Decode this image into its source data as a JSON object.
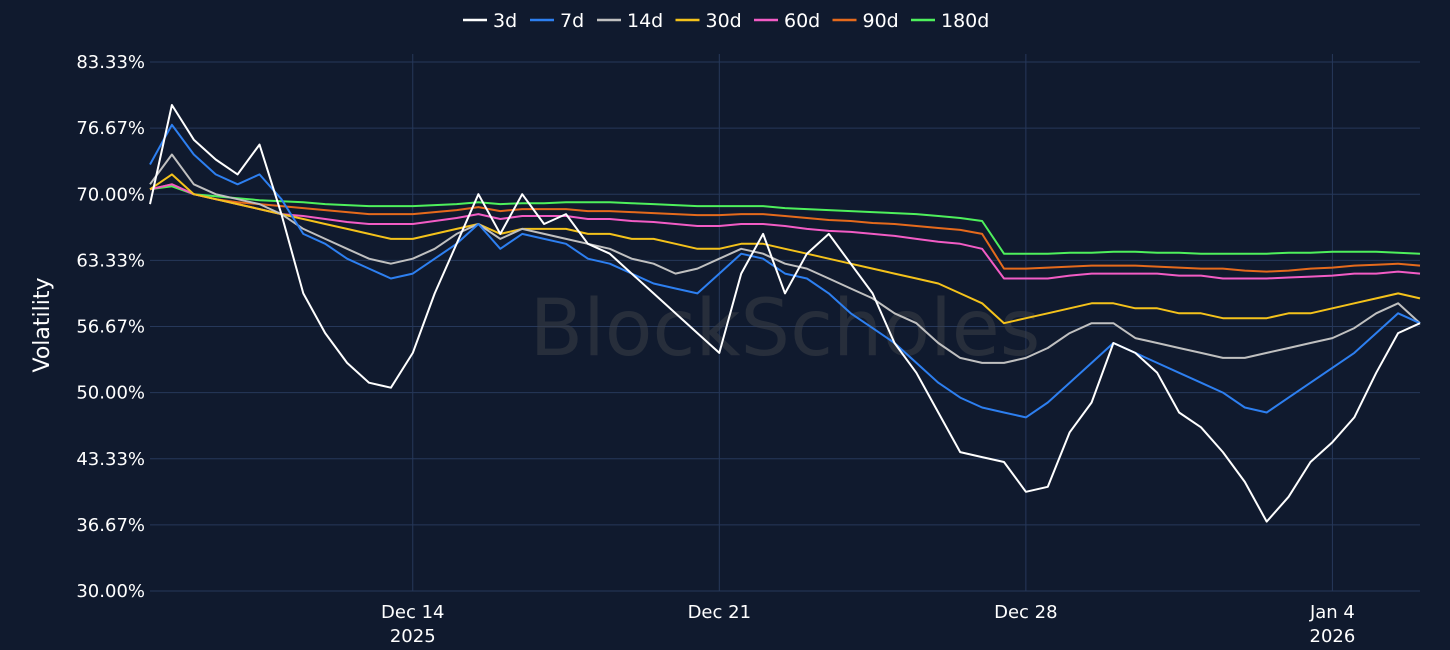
{
  "chart_data": {
    "type": "line",
    "watermark": "BlockScholes",
    "ylabel": "Volatility",
    "ylim": [
      30,
      83.33
    ],
    "y_ticks": [
      "30.00%",
      "36.67%",
      "43.33%",
      "50.00%",
      "56.67%",
      "63.33%",
      "70.00%",
      "76.67%",
      "83.33%"
    ],
    "x_range": [
      "2025-12-08",
      "2026-01-06T00:00"
    ],
    "x_ticks": [
      {
        "date": "2025-12-14",
        "label": "Dec 14",
        "sublabel": "2025"
      },
      {
        "date": "2025-12-21",
        "label": "Dec 21",
        "sublabel": ""
      },
      {
        "date": "2025-12-28",
        "label": "Dec 28",
        "sublabel": ""
      },
      {
        "date": "2026-01-04",
        "label": "Jan 4",
        "sublabel": "2026"
      }
    ],
    "grid": true,
    "legend_position": "top-center",
    "series": [
      {
        "name": "3d",
        "color": "#ffffff",
        "x": [
          "2025-12-08",
          "2025-12-08T12:00",
          "2025-12-09",
          "2025-12-09T12:00",
          "2025-12-10",
          "2025-12-10T12:00",
          "2025-12-11",
          "2025-12-11T12:00",
          "2025-12-12",
          "2025-12-12T12:00",
          "2025-12-13",
          "2025-12-13T12:00",
          "2025-12-14",
          "2025-12-14T12:00",
          "2025-12-15",
          "2025-12-15T12:00",
          "2025-12-16",
          "2025-12-16T12:00",
          "2025-12-17",
          "2025-12-17T12:00",
          "2025-12-18",
          "2025-12-18T12:00",
          "2025-12-19",
          "2025-12-19T12:00",
          "2025-12-20",
          "2025-12-20T12:00",
          "2025-12-21",
          "2025-12-21T12:00",
          "2025-12-22",
          "2025-12-22T12:00",
          "2025-12-23",
          "2025-12-23T12:00",
          "2025-12-24",
          "2025-12-24T12:00",
          "2025-12-25",
          "2025-12-25T12:00",
          "2025-12-26",
          "2025-12-26T12:00",
          "2025-12-27",
          "2025-12-27T12:00",
          "2025-12-28",
          "2025-12-28T12:00",
          "2025-12-29",
          "2025-12-29T12:00",
          "2025-12-30",
          "2025-12-30T12:00",
          "2025-12-31",
          "2025-12-31T12:00",
          "2026-01-01",
          "2026-01-01T12:00",
          "2026-01-02",
          "2026-01-02T12:00",
          "2026-01-03",
          "2026-01-03T12:00",
          "2026-01-04",
          "2026-01-04T12:00",
          "2026-01-05",
          "2026-01-05T12:00",
          "2026-01-06"
        ],
        "values": [
          69,
          79,
          75.5,
          73.5,
          72,
          75,
          68,
          60,
          56,
          53,
          51,
          50.5,
          54,
          60,
          65,
          70,
          66,
          70,
          67,
          68,
          65,
          64,
          62,
          60,
          58,
          56,
          54,
          62,
          66,
          60,
          64,
          66,
          63,
          60,
          55,
          52,
          48,
          44,
          43.5,
          43,
          40,
          40.5,
          46,
          49,
          55,
          54,
          52,
          48,
          46.5,
          44,
          41,
          37,
          39.5,
          43,
          45,
          47.5,
          52,
          56,
          57
        ]
      },
      {
        "name": "7d",
        "color": "#2d7ff0",
        "x": [
          "2025-12-08",
          "2025-12-08T12:00",
          "2025-12-09",
          "2025-12-09T12:00",
          "2025-12-10",
          "2025-12-10T12:00",
          "2025-12-11",
          "2025-12-11T12:00",
          "2025-12-12",
          "2025-12-12T12:00",
          "2025-12-13",
          "2025-12-13T12:00",
          "2025-12-14",
          "2025-12-14T12:00",
          "2025-12-15",
          "2025-12-15T12:00",
          "2025-12-16",
          "2025-12-16T12:00",
          "2025-12-17",
          "2025-12-17T12:00",
          "2025-12-18",
          "2025-12-18T12:00",
          "2025-12-19",
          "2025-12-19T12:00",
          "2025-12-20",
          "2025-12-20T12:00",
          "2025-12-21",
          "2025-12-21T12:00",
          "2025-12-22",
          "2025-12-22T12:00",
          "2025-12-23",
          "2025-12-23T12:00",
          "2025-12-24",
          "2025-12-24T12:00",
          "2025-12-25",
          "2025-12-25T12:00",
          "2025-12-26",
          "2025-12-26T12:00",
          "2025-12-27",
          "2025-12-27T12:00",
          "2025-12-28",
          "2025-12-28T12:00",
          "2025-12-29",
          "2025-12-29T12:00",
          "2025-12-30",
          "2025-12-30T12:00",
          "2025-12-31",
          "2025-12-31T12:00",
          "2026-01-01",
          "2026-01-01T12:00",
          "2026-01-02",
          "2026-01-02T12:00",
          "2026-01-03",
          "2026-01-03T12:00",
          "2026-01-04",
          "2026-01-04T12:00",
          "2026-01-05",
          "2026-01-05T12:00",
          "2026-01-06"
        ],
        "values": [
          73,
          77,
          74,
          72,
          71,
          72,
          69.5,
          66,
          65,
          63.5,
          62.5,
          61.5,
          62,
          63.5,
          65,
          67,
          64.5,
          66,
          65.5,
          65,
          63.5,
          63,
          62,
          61,
          60.5,
          60,
          62,
          64,
          63.5,
          62,
          61.5,
          60,
          58,
          56.5,
          55,
          53,
          51,
          49.5,
          48.5,
          48,
          47.5,
          49,
          51,
          53,
          55,
          54,
          53,
          52,
          51,
          50,
          48.5,
          48,
          49.5,
          51,
          52.5,
          54,
          56,
          58,
          57
        ]
      },
      {
        "name": "14d",
        "color": "#c0c0c0",
        "x": [
          "2025-12-08",
          "2025-12-08T12:00",
          "2025-12-09",
          "2025-12-09T12:00",
          "2025-12-10",
          "2025-12-10T12:00",
          "2025-12-11",
          "2025-12-11T12:00",
          "2025-12-12",
          "2025-12-12T12:00",
          "2025-12-13",
          "2025-12-13T12:00",
          "2025-12-14",
          "2025-12-14T12:00",
          "2025-12-15",
          "2025-12-15T12:00",
          "2025-12-16",
          "2025-12-16T12:00",
          "2025-12-17",
          "2025-12-17T12:00",
          "2025-12-18",
          "2025-12-18T12:00",
          "2025-12-19",
          "2025-12-19T12:00",
          "2025-12-20",
          "2025-12-20T12:00",
          "2025-12-21",
          "2025-12-21T12:00",
          "2025-12-22",
          "2025-12-22T12:00",
          "2025-12-23",
          "2025-12-23T12:00",
          "2025-12-24",
          "2025-12-24T12:00",
          "2025-12-25",
          "2025-12-25T12:00",
          "2025-12-26",
          "2025-12-26T12:00",
          "2025-12-27",
          "2025-12-27T12:00",
          "2025-12-28",
          "2025-12-28T12:00",
          "2025-12-29",
          "2025-12-29T12:00",
          "2025-12-30",
          "2025-12-30T12:00",
          "2025-12-31",
          "2025-12-31T12:00",
          "2026-01-01",
          "2026-01-01T12:00",
          "2026-01-02",
          "2026-01-02T12:00",
          "2026-01-03",
          "2026-01-03T12:00",
          "2026-01-04",
          "2026-01-04T12:00",
          "2026-01-05",
          "2026-01-05T12:00",
          "2026-01-06"
        ],
        "values": [
          71,
          74,
          71,
          70,
          69.5,
          69,
          68,
          66.5,
          65.5,
          64.5,
          63.5,
          63,
          63.5,
          64.5,
          66,
          67,
          65.5,
          66.5,
          66,
          65.5,
          65,
          64.5,
          63.5,
          63,
          62,
          62.5,
          63.5,
          64.5,
          64,
          63,
          62.5,
          61.5,
          60.5,
          59.5,
          58,
          57,
          55,
          53.5,
          53,
          53,
          53.5,
          54.5,
          56,
          57,
          57,
          55.5,
          55,
          54.5,
          54,
          53.5,
          53.5,
          54,
          54.5,
          55,
          55.5,
          56.5,
          58,
          59,
          57
        ]
      },
      {
        "name": "30d",
        "color": "#f4c21b",
        "x": [
          "2025-12-08",
          "2025-12-08T12:00",
          "2025-12-09",
          "2025-12-09T12:00",
          "2025-12-10",
          "2025-12-10T12:00",
          "2025-12-11",
          "2025-12-11T12:00",
          "2025-12-12",
          "2025-12-12T12:00",
          "2025-12-13",
          "2025-12-13T12:00",
          "2025-12-14",
          "2025-12-14T12:00",
          "2025-12-15",
          "2025-12-15T12:00",
          "2025-12-16",
          "2025-12-16T12:00",
          "2025-12-17",
          "2025-12-17T12:00",
          "2025-12-18",
          "2025-12-18T12:00",
          "2025-12-19",
          "2025-12-19T12:00",
          "2025-12-20",
          "2025-12-20T12:00",
          "2025-12-21",
          "2025-12-21T12:00",
          "2025-12-22",
          "2025-12-22T12:00",
          "2025-12-23",
          "2025-12-23T12:00",
          "2025-12-24",
          "2025-12-24T12:00",
          "2025-12-25",
          "2025-12-25T12:00",
          "2025-12-26",
          "2025-12-26T12:00",
          "2025-12-27",
          "2025-12-27T12:00",
          "2025-12-28",
          "2025-12-28T12:00",
          "2025-12-29",
          "2025-12-29T12:00",
          "2025-12-30",
          "2025-12-30T12:00",
          "2025-12-31",
          "2025-12-31T12:00",
          "2026-01-01",
          "2026-01-01T12:00",
          "2026-01-02",
          "2026-01-02T12:00",
          "2026-01-03",
          "2026-01-03T12:00",
          "2026-01-04",
          "2026-01-04T12:00",
          "2026-01-05",
          "2026-01-05T12:00",
          "2026-01-06"
        ],
        "values": [
          70.5,
          72,
          70,
          69.5,
          69,
          68.5,
          68,
          67.5,
          67,
          66.5,
          66,
          65.5,
          65.5,
          66,
          66.5,
          67,
          66,
          66.5,
          66.5,
          66.5,
          66,
          66,
          65.5,
          65.5,
          65,
          64.5,
          64.5,
          65,
          65,
          64.5,
          64,
          63.5,
          63,
          62.5,
          62,
          61.5,
          61,
          60,
          59,
          57,
          57.5,
          58,
          58.5,
          59,
          59,
          58.5,
          58.5,
          58,
          58,
          57.5,
          57.5,
          57.5,
          58,
          58,
          58.5,
          59,
          59.5,
          60,
          59.5
        ]
      },
      {
        "name": "60d",
        "color": "#f25cc5",
        "x": [
          "2025-12-08",
          "2025-12-08T12:00",
          "2025-12-09",
          "2025-12-09T12:00",
          "2025-12-10",
          "2025-12-10T12:00",
          "2025-12-11",
          "2025-12-11T12:00",
          "2025-12-12",
          "2025-12-12T12:00",
          "2025-12-13",
          "2025-12-13T12:00",
          "2025-12-14",
          "2025-12-14T12:00",
          "2025-12-15",
          "2025-12-15T12:00",
          "2025-12-16",
          "2025-12-16T12:00",
          "2025-12-17",
          "2025-12-17T12:00",
          "2025-12-18",
          "2025-12-18T12:00",
          "2025-12-19",
          "2025-12-19T12:00",
          "2025-12-20",
          "2025-12-20T12:00",
          "2025-12-21",
          "2025-12-21T12:00",
          "2025-12-22",
          "2025-12-22T12:00",
          "2025-12-23",
          "2025-12-23T12:00",
          "2025-12-24",
          "2025-12-24T12:00",
          "2025-12-25",
          "2025-12-25T12:00",
          "2025-12-26",
          "2025-12-26T12:00",
          "2025-12-27",
          "2025-12-27T12:00",
          "2025-12-28",
          "2025-12-28T12:00",
          "2025-12-29",
          "2025-12-29T12:00",
          "2025-12-30",
          "2025-12-30T12:00",
          "2025-12-31",
          "2025-12-31T12:00",
          "2026-01-01",
          "2026-01-01T12:00",
          "2026-01-02",
          "2026-01-02T12:00",
          "2026-01-03",
          "2026-01-03T12:00",
          "2026-01-04",
          "2026-01-04T12:00",
          "2026-01-05",
          "2026-01-05T12:00",
          "2026-01-06"
        ],
        "values": [
          70.5,
          71,
          70,
          69.5,
          69,
          68.5,
          68,
          67.8,
          67.5,
          67.2,
          67,
          67,
          67,
          67.3,
          67.6,
          68,
          67.5,
          67.8,
          67.8,
          67.8,
          67.5,
          67.5,
          67.3,
          67.2,
          67,
          66.8,
          66.8,
          67,
          67,
          66.8,
          66.5,
          66.3,
          66.2,
          66,
          65.8,
          65.5,
          65.2,
          65,
          64.5,
          61.5,
          61.5,
          61.5,
          61.8,
          62,
          62,
          62,
          62,
          61.8,
          61.8,
          61.5,
          61.5,
          61.5,
          61.6,
          61.7,
          61.8,
          62,
          62,
          62.2,
          62
        ]
      },
      {
        "name": "90d",
        "color": "#e56a1c",
        "x": [
          "2025-12-08",
          "2025-12-08T12:00",
          "2025-12-09",
          "2025-12-09T12:00",
          "2025-12-10",
          "2025-12-10T12:00",
          "2025-12-11",
          "2025-12-11T12:00",
          "2025-12-12",
          "2025-12-12T12:00",
          "2025-12-13",
          "2025-12-13T12:00",
          "2025-12-14",
          "2025-12-14T12:00",
          "2025-12-15",
          "2025-12-15T12:00",
          "2025-12-16",
          "2025-12-16T12:00",
          "2025-12-17",
          "2025-12-17T12:00",
          "2025-12-18",
          "2025-12-18T12:00",
          "2025-12-19",
          "2025-12-19T12:00",
          "2025-12-20",
          "2025-12-20T12:00",
          "2025-12-21",
          "2025-12-21T12:00",
          "2025-12-22",
          "2025-12-22T12:00",
          "2025-12-23",
          "2025-12-23T12:00",
          "2025-12-24",
          "2025-12-24T12:00",
          "2025-12-25",
          "2025-12-25T12:00",
          "2025-12-26",
          "2025-12-26T12:00",
          "2025-12-27",
          "2025-12-27T12:00",
          "2025-12-28",
          "2025-12-28T12:00",
          "2025-12-29",
          "2025-12-29T12:00",
          "2025-12-30",
          "2025-12-30T12:00",
          "2025-12-31",
          "2025-12-31T12:00",
          "2026-01-01",
          "2026-01-01T12:00",
          "2026-01-02",
          "2026-01-02T12:00",
          "2026-01-03",
          "2026-01-03T12:00",
          "2026-01-04",
          "2026-01-04T12:00",
          "2026-01-05",
          "2026-01-05T12:00",
          "2026-01-06"
        ],
        "values": [
          70.5,
          71,
          70,
          69.5,
          69.2,
          69,
          68.8,
          68.6,
          68.4,
          68.2,
          68,
          68,
          68,
          68.2,
          68.4,
          68.7,
          68.3,
          68.5,
          68.5,
          68.5,
          68.3,
          68.3,
          68.2,
          68.1,
          68,
          67.9,
          67.9,
          68,
          68,
          67.8,
          67.6,
          67.4,
          67.3,
          67.1,
          67,
          66.8,
          66.6,
          66.4,
          66,
          62.5,
          62.5,
          62.6,
          62.7,
          62.8,
          62.8,
          62.8,
          62.7,
          62.6,
          62.5,
          62.5,
          62.3,
          62.2,
          62.3,
          62.5,
          62.6,
          62.8,
          62.9,
          63,
          62.8
        ]
      },
      {
        "name": "180d",
        "color": "#4ef05c",
        "x": [
          "2025-12-08",
          "2025-12-08T12:00",
          "2025-12-09",
          "2025-12-09T12:00",
          "2025-12-10",
          "2025-12-10T12:00",
          "2025-12-11",
          "2025-12-11T12:00",
          "2025-12-12",
          "2025-12-12T12:00",
          "2025-12-13",
          "2025-12-13T12:00",
          "2025-12-14",
          "2025-12-14T12:00",
          "2025-12-15",
          "2025-12-15T12:00",
          "2025-12-16",
          "2025-12-16T12:00",
          "2025-12-17",
          "2025-12-17T12:00",
          "2025-12-18",
          "2025-12-18T12:00",
          "2025-12-19",
          "2025-12-19T12:00",
          "2025-12-20",
          "2025-12-20T12:00",
          "2025-12-21",
          "2025-12-21T12:00",
          "2025-12-22",
          "2025-12-22T12:00",
          "2025-12-23",
          "2025-12-23T12:00",
          "2025-12-24",
          "2025-12-24T12:00",
          "2025-12-25",
          "2025-12-25T12:00",
          "2025-12-26",
          "2025-12-26T12:00",
          "2025-12-27",
          "2025-12-27T12:00",
          "2025-12-28",
          "2025-12-28T12:00",
          "2025-12-29",
          "2025-12-29T12:00",
          "2025-12-30",
          "2025-12-30T12:00",
          "2025-12-31",
          "2025-12-31T12:00",
          "2026-01-01",
          "2026-01-01T12:00",
          "2026-01-02",
          "2026-01-02T12:00",
          "2026-01-03",
          "2026-01-03T12:00",
          "2026-01-04",
          "2026-01-04T12:00",
          "2026-01-05",
          "2026-01-05T12:00",
          "2026-01-06"
        ],
        "values": [
          70.5,
          70.8,
          70,
          69.8,
          69.6,
          69.4,
          69.3,
          69.2,
          69,
          68.9,
          68.8,
          68.8,
          68.8,
          68.9,
          69,
          69.2,
          69,
          69.1,
          69.1,
          69.2,
          69.2,
          69.2,
          69.1,
          69,
          68.9,
          68.8,
          68.8,
          68.8,
          68.8,
          68.6,
          68.5,
          68.4,
          68.3,
          68.2,
          68.1,
          68,
          67.8,
          67.6,
          67.3,
          64,
          64,
          64,
          64.1,
          64.1,
          64.2,
          64.2,
          64.1,
          64.1,
          64,
          64,
          64,
          64,
          64.1,
          64.1,
          64.2,
          64.2,
          64.2,
          64.1,
          64
        ]
      }
    ]
  }
}
